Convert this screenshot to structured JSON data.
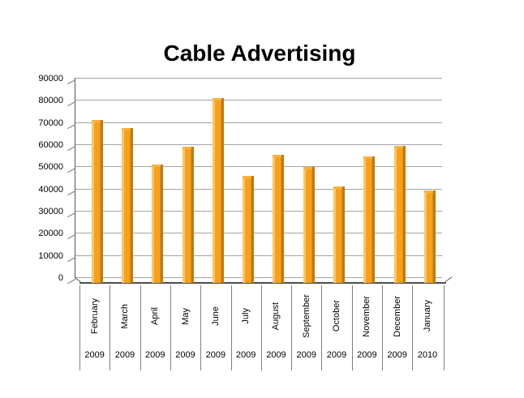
{
  "title": "Cable Advertising",
  "chart_data": {
    "type": "bar",
    "title": "Cable Advertising",
    "categories": [
      "February",
      "March",
      "April",
      "May",
      "June",
      "July",
      "August",
      "September",
      "October",
      "November",
      "December",
      "January"
    ],
    "category_years": [
      "2009",
      "2009",
      "2009",
      "2009",
      "2009",
      "2009",
      "2009",
      "2009",
      "2009",
      "2009",
      "2009",
      "2010"
    ],
    "values": [
      71000,
      67500,
      50800,
      59000,
      80800,
      45800,
      55300,
      49800,
      41000,
      54500,
      59200,
      39200
    ],
    "ylim": [
      0,
      90000
    ],
    "ytick_interval": 10000,
    "ytick_labels": [
      "0",
      "10000",
      "20000",
      "30000",
      "40000",
      "50000",
      "60000",
      "70000",
      "80000",
      "90000"
    ],
    "xlabel": "",
    "ylabel": "",
    "legend": "none",
    "grid": true,
    "style": "3d-column",
    "colors": {
      "bar_main": "#F8A01B",
      "bar_highlight": "#FDC665",
      "bar_shadow": "#BE7B12",
      "bar_cap": "#FBB23D",
      "gridline": "#A3A3A3",
      "axis": "#4D4D4D",
      "separator": "#808080",
      "text": "#000000",
      "background": "#FFFFFF"
    }
  }
}
